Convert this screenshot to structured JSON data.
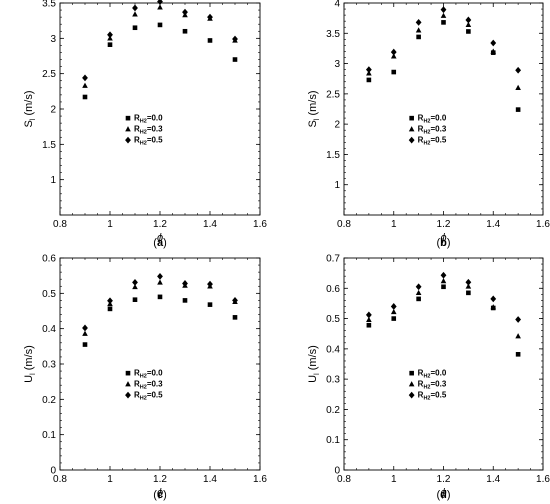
{
  "chart_data": [
    {
      "type": "scatter",
      "caption": [
        "(",
        "a",
        ")"
      ],
      "xlabel": "ϕ",
      "ylabel": {
        "main": "S",
        "sub": "l",
        "unit": " (m/s)"
      },
      "xlim": [
        0.8,
        1.6
      ],
      "ylim": [
        0.5,
        3.5
      ],
      "xticks": [
        "0.8",
        "1",
        "1.2",
        "1.4",
        "1.6"
      ],
      "yticks": [
        "1",
        "1.5",
        "2",
        "2.5",
        "3",
        "3.5"
      ],
      "x": [
        0.9,
        1.0,
        1.1,
        1.2,
        1.3,
        1.4,
        1.5
      ],
      "series": [
        {
          "name": {
            "prefix": "R",
            "sub": "H2",
            "suffix": "=0.0"
          },
          "marker": "square",
          "values": [
            2.17,
            2.91,
            3.15,
            3.19,
            3.1,
            2.97,
            2.7
          ]
        },
        {
          "name": {
            "prefix": "R",
            "sub": "H2",
            "suffix": "=0.3"
          },
          "marker": "triangle",
          "values": [
            2.33,
            3.0,
            3.34,
            3.44,
            3.33,
            3.28,
            2.97
          ]
        },
        {
          "name": {
            "prefix": "R",
            "sub": "H2",
            "suffix": "=0.5"
          },
          "marker": "diamond",
          "values": [
            2.44,
            3.05,
            3.43,
            3.52,
            3.37,
            3.3,
            2.99
          ]
        }
      ],
      "legend_position": "center-right",
      "grid": false
    },
    {
      "type": "scatter",
      "caption": [
        "(",
        "b",
        ")"
      ],
      "xlabel": "ϕ",
      "ylabel": {
        "main": "S",
        "sub": "l",
        "unit": " (m/s)"
      },
      "xlim": [
        0.8,
        1.6
      ],
      "ylim": [
        0.5,
        4.0
      ],
      "xticks": [
        "0.8",
        "1",
        "1.2",
        "1.4",
        "1.6"
      ],
      "yticks": [
        "1",
        "1.5",
        "2",
        "2.5",
        "3",
        "3.5",
        "4"
      ],
      "x": [
        0.9,
        1.0,
        1.1,
        1.2,
        1.3,
        1.4,
        1.5
      ],
      "series": [
        {
          "name": {
            "prefix": "R",
            "sub": "H2",
            "suffix": "=0.0"
          },
          "marker": "square",
          "values": [
            2.73,
            2.86,
            3.44,
            3.68,
            3.53,
            3.18,
            2.24
          ]
        },
        {
          "name": {
            "prefix": "R",
            "sub": "H2",
            "suffix": "=0.3"
          },
          "marker": "triangle",
          "values": [
            2.84,
            3.12,
            3.55,
            3.79,
            3.64,
            3.2,
            2.6
          ]
        },
        {
          "name": {
            "prefix": "R",
            "sub": "H2",
            "suffix": "=0.5"
          },
          "marker": "diamond",
          "values": [
            2.9,
            3.19,
            3.68,
            3.89,
            3.72,
            3.34,
            2.89
          ]
        }
      ],
      "legend_position": "center-right",
      "grid": false
    },
    {
      "type": "scatter",
      "caption": [
        "(",
        "c",
        ")"
      ],
      "xlabel": "ϕ",
      "ylabel": {
        "main": "U",
        "sub": "l",
        "unit": " (m/s)"
      },
      "xlim": [
        0.8,
        1.6
      ],
      "ylim": [
        0.0,
        0.6
      ],
      "xticks": [
        "0.8",
        "1",
        "1.2",
        "1.4",
        "1.6"
      ],
      "yticks": [
        "0",
        "0.1",
        "0.2",
        "0.3",
        "0.4",
        "0.5",
        "0.6"
      ],
      "x": [
        0.9,
        1.0,
        1.1,
        1.2,
        1.3,
        1.4,
        1.5
      ],
      "series": [
        {
          "name": {
            "prefix": "R",
            "sub": "H2",
            "suffix": "=0.0"
          },
          "marker": "square",
          "values": [
            0.355,
            0.456,
            0.482,
            0.49,
            0.48,
            0.468,
            0.432
          ]
        },
        {
          "name": {
            "prefix": "R",
            "sub": "H2",
            "suffix": "=0.3"
          },
          "marker": "triangle",
          "values": [
            0.386,
            0.47,
            0.518,
            0.531,
            0.522,
            0.52,
            0.476
          ]
        },
        {
          "name": {
            "prefix": "R",
            "sub": "H2",
            "suffix": "=0.5"
          },
          "marker": "diamond",
          "values": [
            0.402,
            0.479,
            0.531,
            0.548,
            0.528,
            0.526,
            0.48
          ]
        }
      ],
      "legend_position": "center-right",
      "grid": false
    },
    {
      "type": "scatter",
      "caption": [
        "(",
        "d",
        ")"
      ],
      "xlabel": "ϕ",
      "ylabel": {
        "main": "U",
        "sub": "l",
        "unit": " (m/s)"
      },
      "xlim": [
        0.8,
        1.6
      ],
      "ylim": [
        0.0,
        0.7
      ],
      "xticks": [
        "0.8",
        "1",
        "1.2",
        "1.4",
        "1.6"
      ],
      "yticks": [
        "0",
        "0.1",
        "0.2",
        "0.3",
        "0.4",
        "0.5",
        "0.6",
        "0.7"
      ],
      "x": [
        0.9,
        1.0,
        1.1,
        1.2,
        1.3,
        1.4,
        1.5
      ],
      "series": [
        {
          "name": {
            "prefix": "R",
            "sub": "H2",
            "suffix": "=0.0"
          },
          "marker": "square",
          "values": [
            0.478,
            0.5,
            0.565,
            0.605,
            0.585,
            0.535,
            0.382
          ]
        },
        {
          "name": {
            "prefix": "R",
            "sub": "H2",
            "suffix": "=0.3"
          },
          "marker": "triangle",
          "values": [
            0.496,
            0.522,
            0.585,
            0.624,
            0.606,
            0.538,
            0.442
          ]
        },
        {
          "name": {
            "prefix": "R",
            "sub": "H2",
            "suffix": "=0.5"
          },
          "marker": "diamond",
          "values": [
            0.512,
            0.54,
            0.605,
            0.643,
            0.62,
            0.565,
            0.497
          ]
        }
      ],
      "legend_position": "center-right",
      "grid": false
    }
  ]
}
